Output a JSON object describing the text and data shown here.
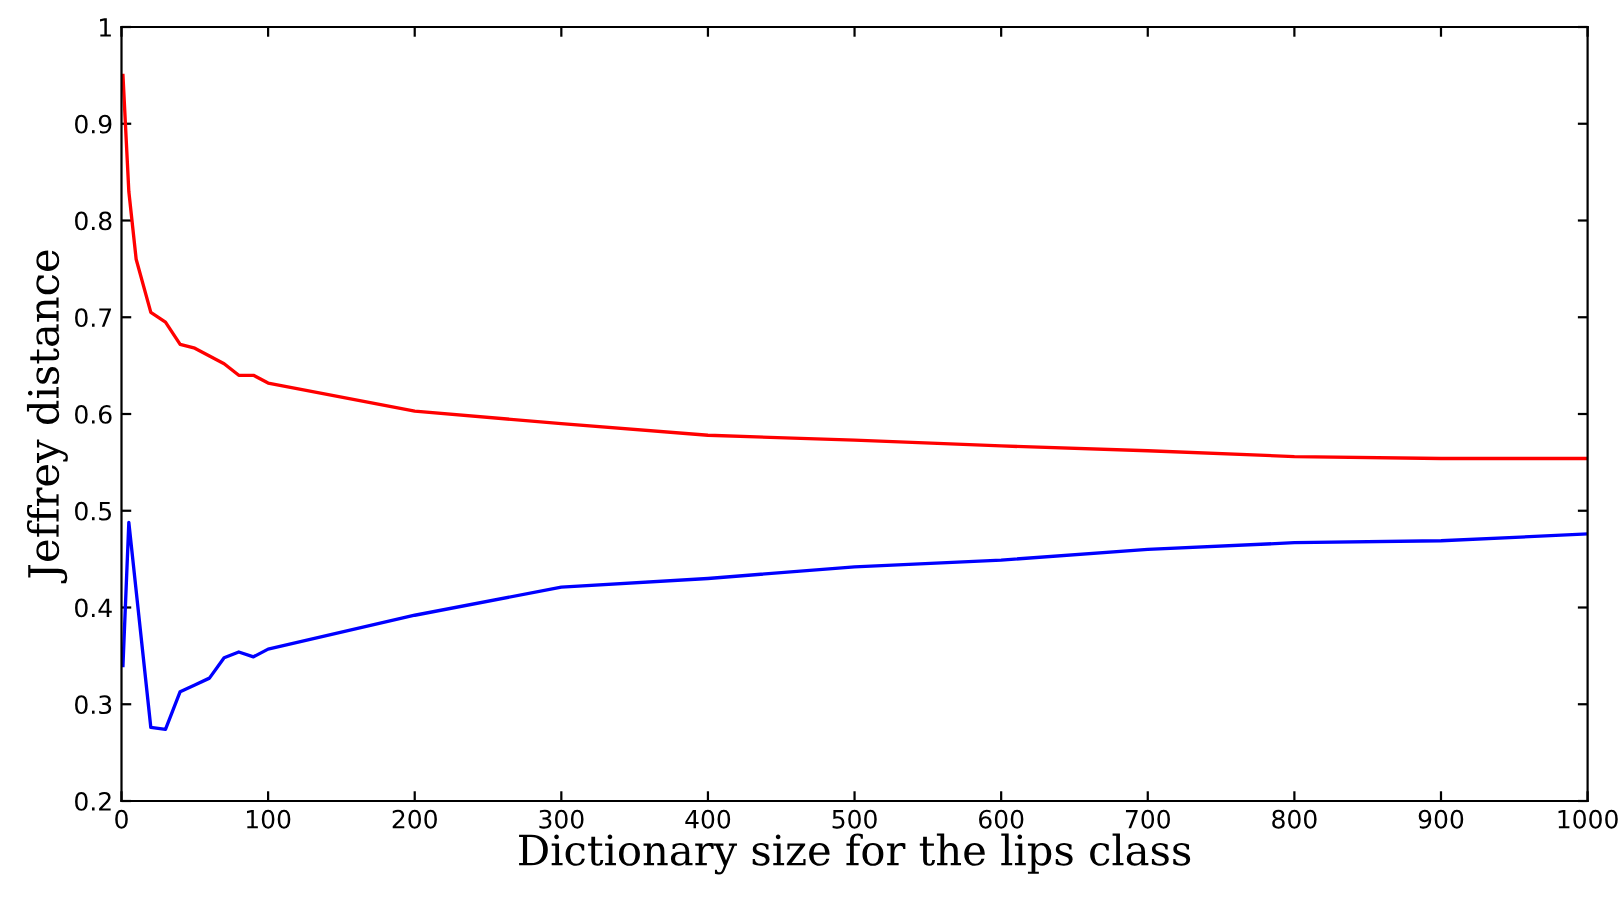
{
  "chart_data": {
    "type": "line",
    "xlabel": "Dictionary size for the lips class",
    "ylabel": "Jeffrey distance",
    "x": [
      1,
      5,
      10,
      20,
      30,
      40,
      50,
      60,
      70,
      80,
      90,
      100,
      200,
      300,
      400,
      500,
      600,
      700,
      800,
      900,
      1000
    ],
    "series": [
      {
        "color": "#ff0000",
        "values": [
          0.95,
          0.83,
          0.76,
          0.705,
          0.695,
          0.672,
          0.668,
          0.66,
          0.652,
          0.64,
          0.64,
          0.632,
          0.603,
          0.59,
          0.578,
          0.573,
          0.567,
          0.562,
          0.556,
          0.554,
          0.554
        ]
      },
      {
        "color": "#0000ff",
        "values": [
          0.34,
          0.488,
          null,
          0.276,
          0.274,
          0.313,
          0.32,
          0.327,
          0.348,
          0.354,
          0.349,
          0.357,
          0.392,
          0.421,
          0.43,
          0.442,
          0.449,
          0.46,
          0.467,
          0.469,
          0.476
        ]
      }
    ],
    "xlim": [
      0,
      1000
    ],
    "xticks": [
      0,
      100,
      200,
      300,
      400,
      500,
      600,
      700,
      800,
      900,
      1000
    ],
    "ylim": [
      0.2,
      1
    ],
    "yticks": [
      0.2,
      0.3,
      0.4,
      0.5,
      0.6,
      0.7,
      0.8,
      0.9,
      1
    ],
    "grid": false,
    "legend": false,
    "line_style": "solid",
    "marker": "none"
  }
}
